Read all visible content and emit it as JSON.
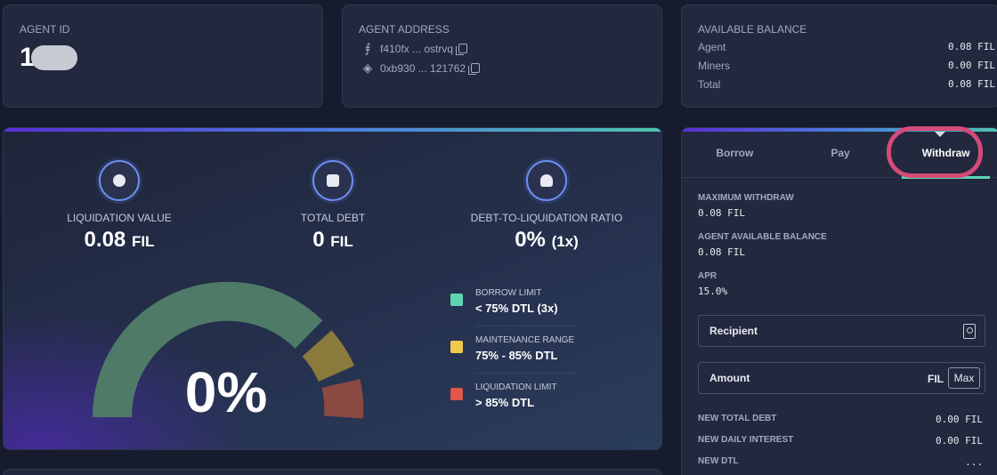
{
  "agent_id": {
    "title": "AGENT ID",
    "value": "1"
  },
  "agent_address": {
    "title": "AGENT ADDRESS",
    "rows": [
      {
        "chain_icon": "filecoin-icon",
        "glyph": "⨎",
        "address": "f410fx ... ostrvq"
      },
      {
        "chain_icon": "ethereum-icon",
        "glyph": "◈",
        "address": "0xb930 ... 121762"
      }
    ]
  },
  "balance": {
    "title": "AVAILABLE BALANCE",
    "rows": [
      {
        "label": "Agent",
        "value": "0.08 FIL"
      },
      {
        "label": "Miners",
        "value": "0.00 FIL"
      },
      {
        "label": "Total",
        "value": "0.08 FIL"
      }
    ]
  },
  "stats": {
    "liquidation": {
      "label": "LIQUIDATION VALUE",
      "value": "0.08",
      "unit": "FIL"
    },
    "debt": {
      "label": "TOTAL DEBT",
      "value": "0",
      "unit": "FIL"
    },
    "ratio": {
      "label": "DEBT-TO-LIQUIDATION RATIO",
      "value": "0%",
      "unit": "(1x)"
    }
  },
  "gauge": {
    "percent_label": "0%",
    "value": 0
  },
  "legend": [
    {
      "title": "BORROW LIMIT",
      "value": "< 75% DTL (3x)",
      "color": "#5fd6b3"
    },
    {
      "title": "MAINTENANCE RANGE",
      "value": "75% - 85% DTL",
      "color": "#f2c94c"
    },
    {
      "title": "LIQUIDATION LIMIT",
      "value": "> 85% DTL",
      "color": "#e0574d"
    }
  ],
  "tabs": [
    "Borrow",
    "Pay",
    "Withdraw"
  ],
  "withdraw": {
    "max_label": "MAXIMUM WITHDRAW",
    "max_value": "0.08 FIL",
    "avail_label": "AGENT AVAILABLE BALANCE",
    "avail_value": "0.08 FIL",
    "apr_label": "APR",
    "apr_value": "15.0%",
    "recipient_placeholder": "Recipient",
    "amount_placeholder": "Amount",
    "amount_unit": "FIL",
    "max_button": "Max"
  },
  "summary": [
    {
      "label": "NEW TOTAL DEBT",
      "value": "0.00 FIL"
    },
    {
      "label": "NEW DAILY INTEREST",
      "value": "0.00 FIL"
    },
    {
      "label": "NEW DTL",
      "value": "..."
    }
  ],
  "colors": {
    "accent": "#5dd6b6",
    "highlight": "#d54a78"
  }
}
